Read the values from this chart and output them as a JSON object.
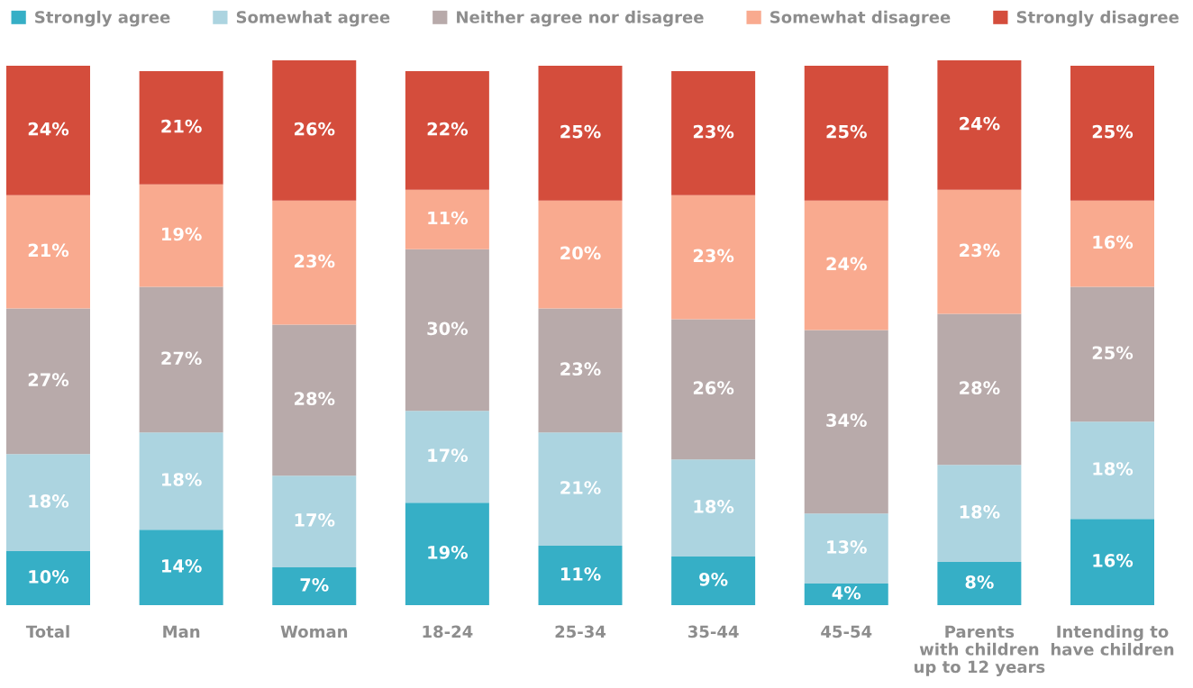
{
  "chart_data": {
    "type": "bar",
    "stacked": true,
    "tick_labels": "x",
    "legend": "top",
    "categories": [
      "Total",
      "Man",
      "Woman",
      "18-24",
      "25-34",
      "35-44",
      "45-54",
      "Parents\nwith children\nup to 12 years",
      "Intending to\nhave children"
    ],
    "series": [
      {
        "name": "Strongly agree",
        "color": "#36afc6",
        "values": [
          10,
          14,
          7,
          19,
          11,
          9,
          4,
          8,
          16
        ],
        "value_labels": [
          "10%",
          "14%",
          "7%",
          "19%",
          "11%",
          "9%",
          "4%",
          "8%",
          "16%"
        ]
      },
      {
        "name": "Somewhat agree",
        "color": "#acd4e0",
        "values": [
          18,
          18,
          17,
          17,
          21,
          18,
          13,
          18,
          18
        ],
        "value_labels": [
          "18%",
          "18%",
          "17%",
          "17%",
          "21%",
          "18%",
          "13%",
          "18%",
          "18%"
        ]
      },
      {
        "name": "Neither agree nor disagree",
        "color": "#b8aaaa",
        "values": [
          27,
          27,
          28,
          30,
          23,
          26,
          34,
          28,
          25
        ],
        "value_labels": [
          "27%",
          "27%",
          "28%",
          "30%",
          "23%",
          "26%",
          "34%",
          "28%",
          "25%"
        ]
      },
      {
        "name": "Somewhat disagree",
        "color": "#f9aa8f",
        "values": [
          21,
          19,
          23,
          11,
          20,
          23,
          24,
          23,
          16
        ],
        "value_labels": [
          "21%",
          "19%",
          "23%",
          "11%",
          "20%",
          "23%",
          "24%",
          "23%",
          "16%"
        ]
      },
      {
        "name": "Strongly disagree",
        "color": "#d44d3c",
        "values": [
          24,
          21,
          26,
          22,
          25,
          23,
          25,
          24,
          25
        ],
        "value_labels": [
          "24%",
          "21%",
          "26%",
          "22%",
          "25%",
          "23%",
          "25%",
          "24%",
          "25%"
        ]
      }
    ]
  }
}
